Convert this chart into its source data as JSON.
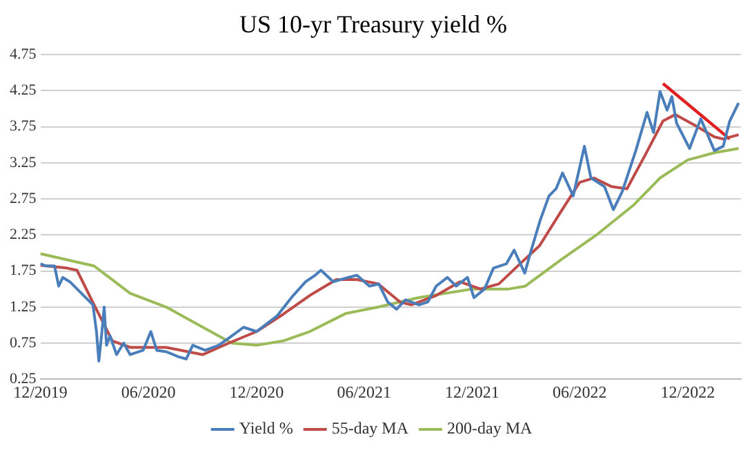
{
  "chart_data": {
    "type": "line",
    "title": "US 10-yr Treasury yield %",
    "legend": "bottom",
    "grid": "y",
    "marker": "none",
    "xlim": [
      "2019-12-01",
      "2023-03-01"
    ],
    "xticks": [
      {
        "value": "2019-12-01",
        "label": "12/2019"
      },
      {
        "value": "2020-06-01",
        "label": "06/2020"
      },
      {
        "value": "2020-12-01",
        "label": "12/2020"
      },
      {
        "value": "2021-06-01",
        "label": "06/2021"
      },
      {
        "value": "2021-12-01",
        "label": "12/2021"
      },
      {
        "value": "2022-06-01",
        "label": "06/2022"
      },
      {
        "value": "2022-12-01",
        "label": "12/2022"
      }
    ],
    "ylim": [
      0.25,
      4.75
    ],
    "yticks": [
      0.25,
      0.75,
      1.25,
      1.75,
      2.25,
      2.75,
      3.25,
      3.75,
      4.25,
      4.75
    ],
    "series": [
      {
        "name": "Yield %",
        "color": "#4a7ebb",
        "x": [
          "2019-12-01",
          "2019-12-10",
          "2019-12-25",
          "2020-01-01",
          "2020-01-08",
          "2020-01-20",
          "2020-02-28",
          "2020-03-05",
          "2020-03-09",
          "2020-03-15",
          "2020-03-18",
          "2020-03-22",
          "2020-03-28",
          "2020-04-08",
          "2020-04-20",
          "2020-05-01",
          "2020-05-23",
          "2020-06-05",
          "2020-06-15",
          "2020-07-01",
          "2020-07-22",
          "2020-08-04",
          "2020-08-15",
          "2020-09-05",
          "2020-09-28",
          "2020-10-20",
          "2020-11-09",
          "2020-12-01",
          "2021-01-05",
          "2021-02-01",
          "2021-02-22",
          "2021-03-10",
          "2021-03-20",
          "2021-04-10",
          "2021-05-05",
          "2021-05-20",
          "2021-06-10",
          "2021-06-26",
          "2021-07-11",
          "2021-07-26",
          "2021-08-10",
          "2021-09-02",
          "2021-09-17",
          "2021-10-01",
          "2021-10-20",
          "2021-11-04",
          "2021-11-23",
          "2021-12-04",
          "2021-12-22",
          "2022-01-06",
          "2022-01-28",
          "2022-02-10",
          "2022-02-28",
          "2022-03-11",
          "2022-03-26",
          "2022-04-10",
          "2022-04-22",
          "2022-05-03",
          "2022-05-21",
          "2022-06-09",
          "2022-06-20",
          "2022-07-13",
          "2022-07-28",
          "2022-08-12",
          "2022-09-04",
          "2022-09-23",
          "2022-10-04",
          "2022-10-15",
          "2022-10-27",
          "2022-11-04",
          "2022-11-12",
          "2022-12-04",
          "2022-12-23",
          "2023-01-15",
          "2023-01-30",
          "2023-02-10",
          "2023-02-25"
        ],
        "values": [
          1.85,
          1.82,
          1.82,
          1.54,
          1.66,
          1.6,
          1.28,
          0.91,
          0.5,
          0.97,
          1.25,
          0.72,
          0.85,
          0.59,
          0.75,
          0.59,
          0.65,
          0.91,
          0.65,
          0.63,
          0.56,
          0.53,
          0.72,
          0.65,
          0.72,
          0.85,
          0.97,
          0.91,
          1.13,
          1.41,
          1.6,
          1.69,
          1.76,
          1.6,
          1.66,
          1.69,
          1.54,
          1.57,
          1.32,
          1.22,
          1.35,
          1.28,
          1.32,
          1.54,
          1.66,
          1.54,
          1.66,
          1.38,
          1.5,
          1.79,
          1.85,
          2.04,
          1.72,
          2.04,
          2.45,
          2.79,
          2.89,
          3.11,
          2.79,
          3.48,
          3.04,
          2.92,
          2.6,
          2.85,
          3.42,
          3.95,
          3.67,
          4.24,
          3.98,
          4.17,
          3.8,
          3.45,
          3.86,
          3.42,
          3.48,
          3.83,
          4.08
        ]
      },
      {
        "name": "55-day MA",
        "color": "#be4b48",
        "x": [
          "2019-12-01",
          "2020-01-15",
          "2020-02-01",
          "2020-03-01",
          "2020-04-01",
          "2020-05-01",
          "2020-07-01",
          "2020-09-01",
          "2020-10-15",
          "2020-12-01",
          "2021-01-15",
          "2021-03-01",
          "2021-04-15",
          "2021-05-20",
          "2021-06-25",
          "2021-08-01",
          "2021-08-20",
          "2021-10-01",
          "2021-11-10",
          "2021-12-15",
          "2022-01-15",
          "2022-02-20",
          "2022-03-25",
          "2022-04-30",
          "2022-06-01",
          "2022-06-25",
          "2022-07-25",
          "2022-08-20",
          "2022-09-20",
          "2022-10-20",
          "2022-11-10",
          "2022-12-15",
          "2023-01-15",
          "2023-01-30",
          "2023-02-25"
        ],
        "values": [
          1.83,
          1.79,
          1.76,
          1.28,
          0.78,
          0.69,
          0.69,
          0.59,
          0.75,
          0.91,
          1.15,
          1.41,
          1.63,
          1.63,
          1.57,
          1.32,
          1.28,
          1.41,
          1.6,
          1.5,
          1.57,
          1.85,
          2.1,
          2.57,
          2.98,
          3.04,
          2.92,
          2.89,
          3.36,
          3.83,
          3.92,
          3.76,
          3.61,
          3.58,
          3.64
        ]
      },
      {
        "name": "200-day MA",
        "color": "#9bbb59",
        "x": [
          "2019-12-01",
          "2020-03-01",
          "2020-05-01",
          "2020-07-01",
          "2020-09-01",
          "2020-10-20",
          "2020-12-01",
          "2021-01-15",
          "2021-03-01",
          "2021-05-01",
          "2021-06-25",
          "2021-09-01",
          "2021-12-01",
          "2022-02-01",
          "2022-03-01",
          "2022-05-01",
          "2022-07-01",
          "2022-09-01",
          "2022-10-15",
          "2022-12-01",
          "2023-01-15",
          "2023-02-25"
        ],
        "values": [
          1.99,
          1.82,
          1.44,
          1.25,
          0.97,
          0.75,
          0.72,
          0.78,
          0.91,
          1.16,
          1.25,
          1.38,
          1.5,
          1.5,
          1.54,
          1.91,
          2.26,
          2.67,
          3.04,
          3.29,
          3.39,
          3.45
        ]
      },
      {
        "type": "line",
        "color": "#e02020",
        "x": [
          "2022-10-20",
          "2023-02-10"
        ],
        "values": [
          4.35,
          3.58
        ]
      }
    ]
  }
}
